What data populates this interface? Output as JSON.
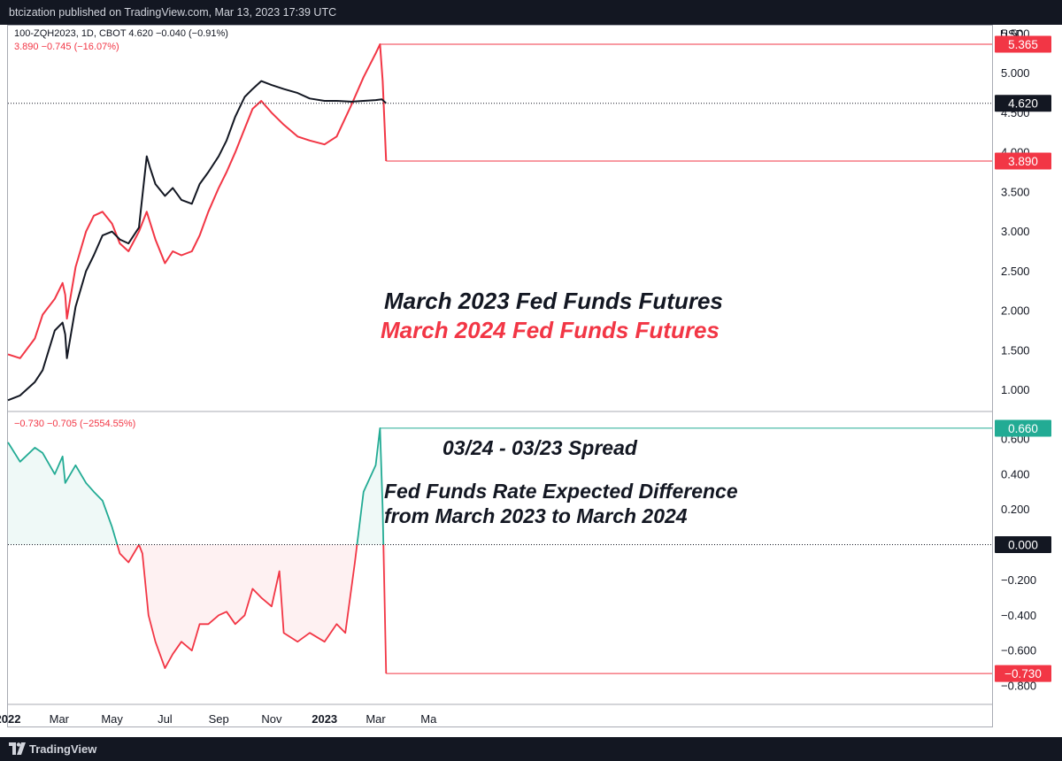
{
  "header": {
    "publish_text": "btcization published on TradingView.com, Mar 13, 2023 17:39 UTC"
  },
  "footer": {
    "logo_text": "TradingView",
    "logo_icon": "tradingview-logo-icon"
  },
  "colors": {
    "black_series": "#131722",
    "red_series": "#f23645",
    "green_series": "#22ab94",
    "background": "#ffffff"
  },
  "chart_data": [
    {
      "type": "line",
      "legend": {
        "line1": "100-ZQH2023, 1D, CBOT  4.620  −0.040 (−0.91%)",
        "line2": "3.890  −0.745 (−16.07%)"
      },
      "annotations": [
        "March 2023 Fed Funds Futures",
        "March 2024 Fed Funds Futures"
      ],
      "y_unit": "USD",
      "yticks": [
        "5.500",
        "5.000",
        "4.500",
        "4.000",
        "3.500",
        "3.000",
        "2.500",
        "2.000",
        "1.500",
        "1.000"
      ],
      "ylim": [
        0.75,
        5.6
      ],
      "grid": false,
      "series": [
        {
          "color": "#131722",
          "x": [
            "2022-01-01",
            "2022-01-15",
            "2022-02-01",
            "2022-02-10",
            "2022-02-24",
            "2022-03-05",
            "2022-03-08",
            "2022-03-10",
            "2022-03-20",
            "2022-04-01",
            "2022-04-10",
            "2022-04-20",
            "2022-05-01",
            "2022-05-10",
            "2022-05-20",
            "2022-06-01",
            "2022-06-10",
            "2022-06-14",
            "2022-06-20",
            "2022-07-01",
            "2022-07-10",
            "2022-07-20",
            "2022-08-01",
            "2022-08-10",
            "2022-08-20",
            "2022-09-01",
            "2022-09-10",
            "2022-09-20",
            "2022-10-01",
            "2022-10-10",
            "2022-10-20",
            "2022-11-01",
            "2022-11-15",
            "2022-12-01",
            "2022-12-15",
            "2023-01-01",
            "2023-01-15",
            "2023-02-01",
            "2023-02-15",
            "2023-03-01",
            "2023-03-08",
            "2023-03-13"
          ],
          "values": [
            0.87,
            0.93,
            1.1,
            1.25,
            1.75,
            1.85,
            1.7,
            1.4,
            2.05,
            2.5,
            2.7,
            2.95,
            3.0,
            2.9,
            2.85,
            3.05,
            3.95,
            3.8,
            3.6,
            3.45,
            3.55,
            3.4,
            3.35,
            3.6,
            3.75,
            3.95,
            4.15,
            4.45,
            4.7,
            4.8,
            4.9,
            4.85,
            4.8,
            4.75,
            4.68,
            4.65,
            4.65,
            4.64,
            4.65,
            4.66,
            4.67,
            4.62
          ]
        },
        {
          "color": "#f23645",
          "x": [
            "2022-01-01",
            "2022-01-15",
            "2022-02-01",
            "2022-02-10",
            "2022-02-24",
            "2022-03-05",
            "2022-03-08",
            "2022-03-10",
            "2022-03-20",
            "2022-04-01",
            "2022-04-10",
            "2022-04-20",
            "2022-05-01",
            "2022-05-10",
            "2022-05-20",
            "2022-06-01",
            "2022-06-10",
            "2022-06-20",
            "2022-07-01",
            "2022-07-10",
            "2022-07-20",
            "2022-08-01",
            "2022-08-10",
            "2022-08-20",
            "2022-09-01",
            "2022-09-10",
            "2022-09-20",
            "2022-10-01",
            "2022-10-10",
            "2022-10-20",
            "2022-11-01",
            "2022-11-15",
            "2022-12-01",
            "2022-12-15",
            "2023-01-01",
            "2023-01-15",
            "2023-02-01",
            "2023-02-15",
            "2023-03-01",
            "2023-03-06",
            "2023-03-09",
            "2023-03-13"
          ],
          "values": [
            1.45,
            1.4,
            1.65,
            1.95,
            2.15,
            2.35,
            2.2,
            1.9,
            2.55,
            3.0,
            3.2,
            3.25,
            3.1,
            2.85,
            2.75,
            3.0,
            3.25,
            2.9,
            2.6,
            2.75,
            2.7,
            2.75,
            2.95,
            3.25,
            3.55,
            3.75,
            4.0,
            4.3,
            4.55,
            4.65,
            4.5,
            4.35,
            4.2,
            4.15,
            4.1,
            4.2,
            4.6,
            4.95,
            5.25,
            5.365,
            4.9,
            3.89
          ]
        }
      ],
      "price_labels": [
        {
          "value": 5.365,
          "text": "5.365",
          "color": "#f23645"
        },
        {
          "value": 4.62,
          "text": "4.620",
          "color": "#131722"
        },
        {
          "value": 3.89,
          "text": "3.890",
          "color": "#f23645"
        }
      ]
    },
    {
      "type": "area",
      "legend": {
        "line1": "−0.730  −0.705 (−2554.55%)"
      },
      "annotations": [
        "03/24 - 03/23 Spread",
        "Fed Funds Rate Expected Difference",
        "from March 2023 to March 2024"
      ],
      "y_unit": "USD",
      "yticks": [
        "0.600",
        "0.400",
        "0.200",
        "0.000",
        "−0.200",
        "−0.400",
        "−0.600",
        "−0.800"
      ],
      "ylim": [
        -0.9,
        0.75
      ],
      "grid": false,
      "baseline": 0,
      "x": [
        "2022-01-01",
        "2022-01-15",
        "2022-02-01",
        "2022-02-10",
        "2022-02-24",
        "2022-03-05",
        "2022-03-08",
        "2022-03-20",
        "2022-04-01",
        "2022-04-10",
        "2022-04-20",
        "2022-05-01",
        "2022-05-10",
        "2022-05-20",
        "2022-06-01",
        "2022-06-05",
        "2022-06-12",
        "2022-06-20",
        "2022-07-01",
        "2022-07-10",
        "2022-07-20",
        "2022-08-01",
        "2022-08-10",
        "2022-08-20",
        "2022-09-01",
        "2022-09-10",
        "2022-09-20",
        "2022-10-01",
        "2022-10-10",
        "2022-10-20",
        "2022-11-01",
        "2022-11-10",
        "2022-11-15",
        "2022-12-01",
        "2022-12-15",
        "2023-01-01",
        "2023-01-15",
        "2023-01-25",
        "2023-02-05",
        "2023-02-15",
        "2023-03-01",
        "2023-03-06",
        "2023-03-09",
        "2023-03-13"
      ],
      "values": [
        0.58,
        0.47,
        0.55,
        0.52,
        0.4,
        0.5,
        0.35,
        0.45,
        0.35,
        0.3,
        0.25,
        0.1,
        -0.05,
        -0.1,
        0.0,
        -0.05,
        -0.4,
        -0.55,
        -0.7,
        -0.62,
        -0.55,
        -0.6,
        -0.45,
        -0.45,
        -0.4,
        -0.38,
        -0.45,
        -0.4,
        -0.25,
        -0.3,
        -0.35,
        -0.15,
        -0.5,
        -0.55,
        -0.5,
        -0.55,
        -0.45,
        -0.5,
        -0.1,
        0.3,
        0.45,
        0.66,
        0.2,
        -0.73
      ],
      "price_labels": [
        {
          "value": 0.66,
          "text": "0.660",
          "color": "#22ab94"
        },
        {
          "value": 0.0,
          "text": "0.000",
          "color": "#131722"
        },
        {
          "value": -0.73,
          "text": "−0.730",
          "color": "#f23645"
        }
      ]
    }
  ],
  "x_axis": {
    "ticks": [
      {
        "date": "2022-01-01",
        "label": "2022",
        "bold": true
      },
      {
        "date": "2022-03-01",
        "label": "Mar",
        "bold": false
      },
      {
        "date": "2022-05-01",
        "label": "May",
        "bold": false
      },
      {
        "date": "2022-07-01",
        "label": "Jul",
        "bold": false
      },
      {
        "date": "2022-09-01",
        "label": "Sep",
        "bold": false
      },
      {
        "date": "2022-11-01",
        "label": "Nov",
        "bold": false
      },
      {
        "date": "2023-01-01",
        "label": "2023",
        "bold": true
      },
      {
        "date": "2023-03-01",
        "label": "Mar",
        "bold": false
      },
      {
        "date": "2023-05-01",
        "label": "Ma",
        "bold": false
      }
    ]
  }
}
